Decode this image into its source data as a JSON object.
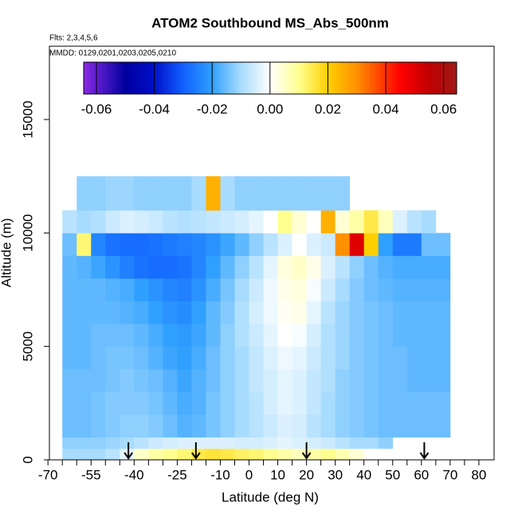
{
  "chart_data": {
    "type": "heatmap",
    "title": "ATOM2 Southbound MS_Abs_500nm",
    "subtitle": "Flts: 2,3,4,5,6",
    "annotation": "MMDD: 0129,0201,0203,0205,0210",
    "xlabel": "Latitude (deg N)",
    "ylabel": "Altitude (m)",
    "xlim": [
      -69.5,
      85.3
    ],
    "ylim": [
      0,
      18230
    ],
    "xticks": [
      -70,
      -55,
      -40,
      -25,
      -10,
      0,
      10,
      20,
      30,
      40,
      50,
      60,
      70,
      80
    ],
    "xminorticks": [
      -65,
      -60,
      -50,
      -45,
      -35,
      -30,
      -20,
      -15,
      -5,
      5,
      15,
      25,
      35,
      45,
      55,
      65,
      75
    ],
    "yticks": [
      0,
      5000,
      10000,
      15000
    ],
    "x_bins": [
      -65,
      -60,
      -55,
      -50,
      -45,
      -40,
      -35,
      -30,
      -25,
      -20,
      -15,
      -10,
      -5,
      0,
      5,
      10,
      15,
      20,
      25,
      30,
      35,
      40,
      45,
      50,
      55,
      60,
      65,
      70
    ],
    "y_bins": [
      0,
      500,
      1000,
      2000,
      3000,
      4000,
      5000,
      6000,
      7000,
      8000,
      9000,
      10000,
      11000,
      12500
    ],
    "z": [
      [
        -0.01,
        -0.01,
        -0.01,
        -0.008,
        -0.003,
        0.005,
        0.008,
        0.01,
        0.012,
        0.015,
        0.016,
        0.015,
        0.013,
        0.012,
        0.01,
        0.008,
        0.006,
        0.008,
        0.01,
        0.007,
        0.004,
        null,
        null,
        null,
        null,
        null,
        null
      ],
      [
        -0.012,
        -0.012,
        -0.012,
        -0.011,
        -0.01,
        -0.008,
        -0.006,
        -0.005,
        -0.004,
        -0.004,
        -0.004,
        -0.004,
        -0.005,
        -0.005,
        -0.004,
        -0.003,
        -0.004,
        -0.005,
        -0.006,
        -0.008,
        -0.01,
        -0.01,
        -0.012,
        null,
        null,
        null,
        null
      ],
      [
        -0.015,
        -0.015,
        -0.014,
        -0.013,
        -0.012,
        -0.012,
        -0.013,
        -0.015,
        -0.017,
        -0.016,
        -0.014,
        -0.012,
        -0.01,
        -0.008,
        -0.006,
        -0.004,
        -0.005,
        -0.008,
        -0.01,
        -0.012,
        -0.013,
        -0.014,
        -0.015,
        -0.015,
        -0.015,
        -0.015,
        -0.015
      ],
      [
        -0.015,
        -0.015,
        -0.014,
        -0.013,
        -0.013,
        -0.013,
        -0.014,
        -0.016,
        -0.018,
        -0.017,
        -0.014,
        -0.012,
        -0.01,
        -0.008,
        -0.005,
        -0.003,
        -0.004,
        -0.007,
        -0.01,
        -0.012,
        -0.013,
        -0.014,
        -0.015,
        -0.015,
        -0.015,
        -0.015,
        -0.015
      ],
      [
        -0.015,
        -0.015,
        -0.015,
        -0.014,
        -0.013,
        -0.014,
        -0.015,
        -0.017,
        -0.019,
        -0.017,
        -0.015,
        -0.012,
        -0.01,
        -0.007,
        -0.005,
        -0.003,
        -0.004,
        -0.007,
        -0.009,
        -0.012,
        -0.013,
        -0.014,
        -0.015,
        -0.015,
        -0.016,
        -0.016,
        -0.016
      ],
      [
        -0.016,
        -0.016,
        -0.015,
        -0.014,
        -0.014,
        -0.015,
        -0.017,
        -0.019,
        -0.02,
        -0.018,
        -0.015,
        -0.012,
        -0.01,
        -0.007,
        -0.004,
        -0.002,
        -0.003,
        -0.006,
        -0.009,
        -0.011,
        -0.013,
        -0.014,
        -0.015,
        -0.015,
        -0.016,
        -0.016,
        -0.016
      ],
      [
        -0.016,
        -0.016,
        -0.015,
        -0.015,
        -0.015,
        -0.016,
        -0.018,
        -0.02,
        -0.021,
        -0.019,
        -0.016,
        -0.012,
        -0.009,
        -0.006,
        -0.003,
        0.0,
        -0.001,
        -0.005,
        -0.009,
        -0.011,
        -0.013,
        -0.014,
        -0.015,
        -0.016,
        -0.016,
        -0.016,
        -0.016
      ],
      [
        -0.016,
        -0.016,
        -0.016,
        -0.016,
        -0.017,
        -0.018,
        -0.02,
        -0.022,
        -0.023,
        -0.02,
        -0.016,
        -0.013,
        -0.009,
        -0.005,
        -0.002,
        0.001,
        0.002,
        -0.003,
        -0.008,
        -0.011,
        -0.013,
        -0.014,
        -0.015,
        -0.016,
        -0.016,
        -0.016,
        -0.016
      ],
      [
        -0.016,
        -0.016,
        -0.016,
        -0.017,
        -0.018,
        -0.02,
        -0.022,
        -0.024,
        -0.025,
        -0.022,
        -0.018,
        -0.014,
        -0.01,
        -0.006,
        -0.002,
        0.002,
        0.003,
        -0.001,
        -0.006,
        -0.01,
        -0.013,
        -0.015,
        -0.016,
        -0.017,
        -0.017,
        -0.017,
        -0.017
      ],
      [
        -0.016,
        -0.017,
        -0.019,
        -0.022,
        -0.025,
        -0.027,
        -0.028,
        -0.028,
        -0.027,
        -0.024,
        -0.02,
        -0.016,
        -0.012,
        -0.008,
        -0.003,
        0.003,
        0.005,
        0.002,
        -0.004,
        -0.008,
        -0.012,
        -0.015,
        -0.017,
        -0.018,
        -0.018,
        -0.018,
        -0.018
      ],
      [
        -0.015,
        0.012,
        -0.024,
        -0.027,
        -0.028,
        -0.028,
        -0.027,
        -0.026,
        -0.025,
        -0.024,
        -0.022,
        -0.019,
        -0.016,
        -0.012,
        -0.008,
        -0.004,
        0.0,
        -0.004,
        -0.006,
        0.03,
        0.05,
        0.02,
        -0.02,
        -0.026,
        -0.026,
        -0.015,
        -0.015
      ],
      [
        -0.008,
        -0.01,
        -0.009,
        -0.006,
        -0.004,
        -0.005,
        -0.006,
        -0.008,
        -0.009,
        -0.008,
        -0.007,
        -0.006,
        -0.005,
        -0.003,
        0.0,
        0.01,
        0.004,
        0.0,
        0.025,
        0.004,
        0.008,
        0.015,
        0.006,
        -0.004,
        -0.008,
        -0.01,
        null
      ],
      [
        null,
        -0.012,
        -0.012,
        -0.011,
        -0.011,
        -0.012,
        -0.012,
        -0.012,
        -0.012,
        -0.01,
        0.025,
        -0.01,
        -0.012,
        -0.012,
        -0.012,
        -0.012,
        -0.012,
        -0.012,
        -0.012,
        -0.012,
        null,
        null,
        null,
        null,
        null,
        null,
        null
      ]
    ],
    "arrows_x": [
      -42,
      -18.5,
      20,
      61
    ],
    "clim": [
      -0.0644,
      0.0645
    ],
    "cticks": [
      -0.06,
      -0.04,
      -0.02,
      {
        "value": 0,
        "label": "0.00"
      },
      0.02,
      0.04,
      0.06
    ],
    "colorscale": [
      [
        -0.0644,
        "#8a2be2"
      ],
      [
        -0.05,
        "#0000a0"
      ],
      [
        -0.04,
        "#0010c8"
      ],
      [
        -0.03,
        "#1060ff"
      ],
      [
        -0.02,
        "#30a0ff"
      ],
      [
        -0.01,
        "#a8dcff"
      ],
      [
        0,
        "#ffffff"
      ],
      [
        0.01,
        "#ffff90"
      ],
      [
        0.02,
        "#ffd000"
      ],
      [
        0.03,
        "#ff9000"
      ],
      [
        0.045,
        "#ff0000"
      ],
      [
        0.055,
        "#c00000"
      ],
      [
        0.0645,
        "#a01818"
      ]
    ]
  }
}
